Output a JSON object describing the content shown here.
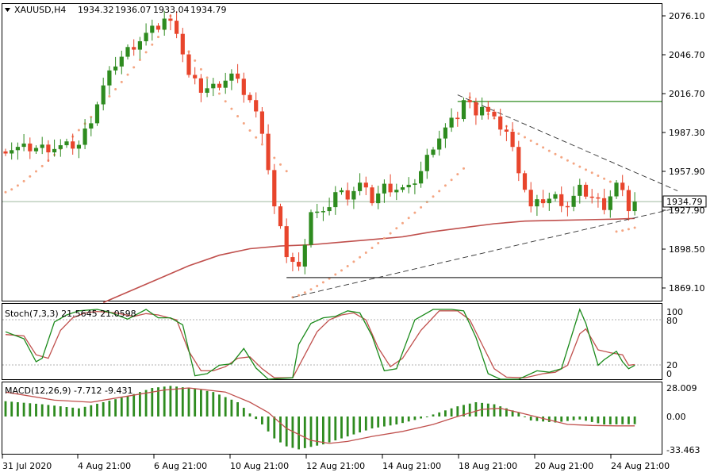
{
  "header": {
    "symbol": "XAUUSD,H4",
    "open": "1934.32",
    "high": "1936.07",
    "low": "1933.04",
    "close": "1934.79"
  },
  "price_scale": {
    "labels": [
      "2076.10",
      "2046.70",
      "2016.70",
      "1987.30",
      "1957.90",
      "1927.90",
      "1898.50",
      "1869.10"
    ],
    "current_price_label": "1934.79"
  },
  "time_axis": {
    "labels": [
      "31 Jul 2020",
      "4 Aug 21:00",
      "6 Aug 21:00",
      "10 Aug 21:00",
      "12 Aug 21:00",
      "14 Aug 21:00",
      "18 Aug 21:00",
      "20 Aug 21:00",
      "24 Aug 21:00"
    ]
  },
  "stoch": {
    "title": "Stoch(7,3,3) 21.5645 21.0598",
    "levels": [
      "100",
      "80",
      "20",
      "0"
    ]
  },
  "macd": {
    "title": "MACD(12,26,9) -7.712 -9.431",
    "levels": [
      "28.009",
      "0.00",
      "-33.463"
    ]
  },
  "colors": {
    "bull": "#2e8b1f",
    "bear": "#e8452c",
    "sar": "#f4a582",
    "ma": "#c0504d",
    "stoch_main": "#1a8a1a",
    "stoch_signal": "#c0504d",
    "macd_hist": "#2e8b1f",
    "macd_signal": "#c0504d",
    "resistance": "#2e8b1f",
    "support": "#333333"
  },
  "chart_data": {
    "type": "candlestick",
    "symbol": "XAUUSD",
    "timeframe": "H4",
    "y_range": [
      1857,
      2086
    ],
    "x_labels": [
      "31 Jul 2020",
      "4 Aug 21:00",
      "6 Aug 21:00",
      "10 Aug 21:00",
      "12 Aug 21:00",
      "14 Aug 21:00",
      "18 Aug 21:00",
      "20 Aug 21:00",
      "24 Aug 21:00"
    ],
    "close_path": [
      [
        0,
        1975
      ],
      [
        8,
        1976
      ],
      [
        12,
        1978
      ],
      [
        14,
        1998
      ],
      [
        16,
        2022
      ],
      [
        18,
        2040
      ],
      [
        20,
        2050
      ],
      [
        23,
        2062
      ],
      [
        25,
        2068
      ],
      [
        26,
        2074
      ],
      [
        28,
        2066
      ],
      [
        30,
        2030
      ],
      [
        32,
        2020
      ],
      [
        34,
        2022
      ],
      [
        37,
        2031
      ],
      [
        40,
        2012
      ],
      [
        42,
        1990
      ],
      [
        44,
        1930
      ],
      [
        46,
        1895
      ],
      [
        48,
        1883
      ],
      [
        50,
        1928
      ],
      [
        52,
        1924
      ],
      [
        54,
        1942
      ],
      [
        56,
        1940
      ],
      [
        58,
        1948
      ],
      [
        60,
        1936
      ],
      [
        62,
        1946
      ],
      [
        66,
        1944
      ],
      [
        68,
        1958
      ],
      [
        70,
        1978
      ],
      [
        72,
        1990
      ],
      [
        74,
        2000
      ],
      [
        75,
        2012
      ],
      [
        77,
        2004
      ],
      [
        78,
        2008
      ],
      [
        80,
        1996
      ],
      [
        82,
        1988
      ],
      [
        84,
        1960
      ],
      [
        86,
        1930
      ],
      [
        88,
        1936
      ],
      [
        90,
        1938
      ],
      [
        92,
        1932
      ],
      [
        94,
        1944
      ],
      [
        96,
        1938
      ],
      [
        98,
        1932
      ],
      [
        100,
        1948
      ],
      [
        101,
        1940
      ],
      [
        102,
        1930
      ],
      [
        103,
        1934.79
      ]
    ],
    "sma_path": [
      [
        16,
        1858
      ],
      [
        20,
        1866
      ],
      [
        25,
        1876
      ],
      [
        30,
        1886
      ],
      [
        35,
        1894
      ],
      [
        40,
        1899
      ],
      [
        45,
        1901
      ],
      [
        50,
        1902
      ],
      [
        55,
        1904
      ],
      [
        60,
        1906
      ],
      [
        65,
        1908
      ],
      [
        70,
        1912
      ],
      [
        75,
        1915
      ],
      [
        80,
        1918
      ],
      [
        85,
        1920
      ],
      [
        90,
        1920.5
      ],
      [
        95,
        1921
      ],
      [
        100,
        1921.5
      ],
      [
        103,
        1922
      ]
    ],
    "parabolic_sar": {
      "segments": [
        {
          "type": "below",
          "from": [
            0,
            1942
          ],
          "to": [
            26,
            2066
          ]
        },
        {
          "type": "above",
          "from": [
            27,
            2076
          ],
          "to": [
            46,
            1958
          ]
        },
        {
          "type": "below",
          "from": [
            47,
            1862
          ],
          "to": [
            75,
            1960
          ]
        },
        {
          "type": "above",
          "from": [
            76,
            2014
          ],
          "to": [
            99,
            1950
          ]
        },
        {
          "type": "below",
          "from": [
            100,
            1912
          ],
          "to": [
            103,
            1915
          ]
        }
      ]
    },
    "resistance_level": 2011,
    "support_level": 1877,
    "triangle": {
      "upper": [
        [
          74,
          2016
        ],
        [
          110,
          1943
        ]
      ],
      "lower": [
        [
          47,
          1862
        ],
        [
          110,
          1930
        ]
      ]
    },
    "stochastic": {
      "params": "7,3,3",
      "main_last": 21.5645,
      "signal_last": 21.0598,
      "range": [
        0,
        100
      ],
      "main_path": [
        [
          0,
          68
        ],
        [
          3,
          58
        ],
        [
          5,
          25
        ],
        [
          6,
          30
        ],
        [
          8,
          82
        ],
        [
          10,
          92
        ],
        [
          12,
          98
        ],
        [
          15,
          100
        ],
        [
          17,
          96
        ],
        [
          20,
          86
        ],
        [
          23,
          100
        ],
        [
          25,
          88
        ],
        [
          27,
          88
        ],
        [
          29,
          78
        ],
        [
          31,
          5
        ],
        [
          33,
          8
        ],
        [
          35,
          20
        ],
        [
          37,
          22
        ],
        [
          39,
          44
        ],
        [
          41,
          16
        ],
        [
          43,
          0
        ],
        [
          47,
          2
        ],
        [
          48,
          50
        ],
        [
          50,
          80
        ],
        [
          52,
          88
        ],
        [
          54,
          90
        ],
        [
          56,
          98
        ],
        [
          58,
          95
        ],
        [
          60,
          62
        ],
        [
          62,
          12
        ],
        [
          64,
          15
        ],
        [
          67,
          85
        ],
        [
          70,
          100
        ],
        [
          73,
          100
        ],
        [
          75,
          98
        ],
        [
          77,
          60
        ],
        [
          79,
          8
        ],
        [
          81,
          0
        ],
        [
          84,
          0
        ],
        [
          87,
          12
        ],
        [
          89,
          10
        ],
        [
          91,
          15
        ],
        [
          94,
          100
        ],
        [
          95,
          80
        ],
        [
          97,
          20
        ],
        [
          98,
          28
        ],
        [
          100,
          40
        ],
        [
          101,
          25
        ],
        [
          102,
          15
        ],
        [
          103,
          20
        ]
      ],
      "signal_path": [
        [
          0,
          64
        ],
        [
          3,
          62
        ],
        [
          5,
          35
        ],
        [
          7,
          30
        ],
        [
          9,
          70
        ],
        [
          11,
          88
        ],
        [
          13,
          95
        ],
        [
          15,
          97
        ],
        [
          18,
          95
        ],
        [
          21,
          90
        ],
        [
          23,
          94
        ],
        [
          25,
          92
        ],
        [
          28,
          85
        ],
        [
          30,
          40
        ],
        [
          32,
          12
        ],
        [
          34,
          12
        ],
        [
          36,
          18
        ],
        [
          38,
          30
        ],
        [
          40,
          32
        ],
        [
          42,
          15
        ],
        [
          44,
          2
        ],
        [
          47,
          2
        ],
        [
          49,
          35
        ],
        [
          51,
          68
        ],
        [
          53,
          85
        ],
        [
          55,
          92
        ],
        [
          57,
          95
        ],
        [
          59,
          85
        ],
        [
          61,
          45
        ],
        [
          63,
          18
        ],
        [
          65,
          30
        ],
        [
          68,
          70
        ],
        [
          71,
          98
        ],
        [
          74,
          98
        ],
        [
          76,
          85
        ],
        [
          78,
          50
        ],
        [
          80,
          15
        ],
        [
          82,
          3
        ],
        [
          85,
          2
        ],
        [
          88,
          8
        ],
        [
          90,
          10
        ],
        [
          92,
          20
        ],
        [
          94,
          65
        ],
        [
          95,
          72
        ],
        [
          97,
          42
        ],
        [
          99,
          38
        ],
        [
          101,
          35
        ],
        [
          102,
          20
        ],
        [
          103,
          21
        ]
      ]
    },
    "macd": {
      "params": "12,26,9",
      "main_last": -7.712,
      "signal_last": -9.431,
      "range": [
        -33.463,
        28.009
      ],
      "histogram_samples": [
        [
          0,
          15
        ],
        [
          6,
          12
        ],
        [
          12,
          8
        ],
        [
          16,
          14
        ],
        [
          20,
          20
        ],
        [
          24,
          28
        ],
        [
          27,
          30
        ],
        [
          30,
          28
        ],
        [
          34,
          24
        ],
        [
          38,
          14
        ],
        [
          42,
          -8
        ],
        [
          44,
          -22
        ],
        [
          46,
          -30
        ],
        [
          48,
          -33
        ],
        [
          52,
          -28
        ],
        [
          56,
          -20
        ],
        [
          60,
          -12
        ],
        [
          64,
          -8
        ],
        [
          68,
          -2
        ],
        [
          70,
          2
        ],
        [
          74,
          10
        ],
        [
          77,
          14
        ],
        [
          80,
          12
        ],
        [
          84,
          4
        ],
        [
          86,
          -4
        ],
        [
          90,
          -6
        ],
        [
          94,
          -3
        ],
        [
          98,
          -8
        ],
        [
          103,
          -7.712
        ]
      ],
      "signal_path": [
        [
          0,
          24
        ],
        [
          8,
          16
        ],
        [
          14,
          14
        ],
        [
          20,
          20
        ],
        [
          26,
          26
        ],
        [
          30,
          28
        ],
        [
          36,
          24
        ],
        [
          40,
          14
        ],
        [
          43,
          4
        ],
        [
          46,
          -12
        ],
        [
          50,
          -24
        ],
        [
          53,
          -27
        ],
        [
          56,
          -25
        ],
        [
          60,
          -20
        ],
        [
          65,
          -15
        ],
        [
          70,
          -8
        ],
        [
          74,
          0
        ],
        [
          78,
          7
        ],
        [
          81,
          8
        ],
        [
          84,
          4
        ],
        [
          88,
          -2
        ],
        [
          92,
          -8
        ],
        [
          96,
          -9
        ],
        [
          100,
          -9.4
        ],
        [
          103,
          -9.431
        ]
      ]
    }
  }
}
